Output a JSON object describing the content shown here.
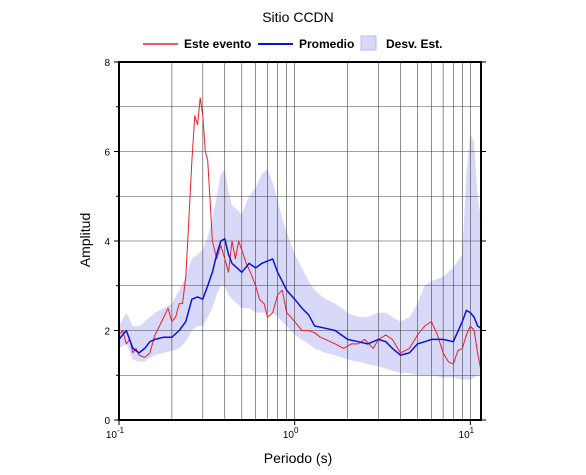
{
  "chart_data": {
    "type": "line",
    "title": "Sitio CCDN",
    "xlabel": "Periodo (s)",
    "ylabel": "Amplitud",
    "x_scale": "log",
    "xlim": [
      0.1,
      11.5
    ],
    "ylim": [
      0,
      8
    ],
    "x_ticks": [
      {
        "value": 0.1,
        "base": "10",
        "exp": "-1"
      },
      {
        "value": 1,
        "base": "10",
        "exp": "0"
      },
      {
        "value": 10,
        "base": "10",
        "exp": "1"
      }
    ],
    "y_ticks": [
      0,
      2,
      4,
      6,
      8
    ],
    "grid": true,
    "legend_position": "top",
    "series": [
      {
        "name": "Este evento",
        "color": "#e8202a",
        "x": [
          0.1,
          0.105,
          0.11,
          0.115,
          0.12,
          0.125,
          0.13,
          0.14,
          0.15,
          0.16,
          0.17,
          0.18,
          0.19,
          0.2,
          0.21,
          0.22,
          0.23,
          0.24,
          0.25,
          0.26,
          0.27,
          0.28,
          0.29,
          0.3,
          0.31,
          0.32,
          0.33,
          0.34,
          0.36,
          0.38,
          0.4,
          0.42,
          0.44,
          0.46,
          0.48,
          0.5,
          0.53,
          0.56,
          0.6,
          0.63,
          0.67,
          0.7,
          0.75,
          0.8,
          0.85,
          0.9,
          0.95,
          1.0,
          1.1,
          1.2,
          1.3,
          1.4,
          1.5,
          1.7,
          1.9,
          2.1,
          2.3,
          2.5,
          2.8,
          3.0,
          3.3,
          3.6,
          4.0,
          4.5,
          5.0,
          5.5,
          6.0,
          6.5,
          7.0,
          7.5,
          8.0,
          8.5,
          9.0,
          9.5,
          10.0,
          10.5,
          11.0,
          11.5
        ],
        "values": [
          1.9,
          2.0,
          1.7,
          1.8,
          1.5,
          1.6,
          1.45,
          1.4,
          1.5,
          1.9,
          2.1,
          2.3,
          2.5,
          2.2,
          2.3,
          2.6,
          2.6,
          3.2,
          4.5,
          5.8,
          6.8,
          6.6,
          7.2,
          6.8,
          6.0,
          5.8,
          4.9,
          4.0,
          3.6,
          3.9,
          3.6,
          3.3,
          4.0,
          3.6,
          4.0,
          3.8,
          3.5,
          3.3,
          3.0,
          2.7,
          2.6,
          2.3,
          2.4,
          2.8,
          2.9,
          2.4,
          2.3,
          2.2,
          2.0,
          2.0,
          1.95,
          1.85,
          1.8,
          1.7,
          1.6,
          1.7,
          1.7,
          1.8,
          1.6,
          1.8,
          1.9,
          1.8,
          1.5,
          1.6,
          1.9,
          2.1,
          2.2,
          1.9,
          1.5,
          1.3,
          1.25,
          1.55,
          1.6,
          1.9,
          2.1,
          2.0,
          1.5,
          1.1
        ]
      },
      {
        "name": "Promedio",
        "color": "#0a14d8",
        "x": [
          0.1,
          0.11,
          0.12,
          0.13,
          0.14,
          0.15,
          0.16,
          0.18,
          0.2,
          0.22,
          0.24,
          0.26,
          0.28,
          0.3,
          0.32,
          0.34,
          0.36,
          0.38,
          0.4,
          0.42,
          0.44,
          0.47,
          0.5,
          0.55,
          0.6,
          0.65,
          0.7,
          0.75,
          0.8,
          0.85,
          0.9,
          1.0,
          1.1,
          1.2,
          1.3,
          1.5,
          1.7,
          2.0,
          2.3,
          2.6,
          3.0,
          3.3,
          3.6,
          4.0,
          4.5,
          5.0,
          5.5,
          6.0,
          7.0,
          8.0,
          9.0,
          9.5,
          10.0,
          10.5,
          11.0,
          11.5
        ],
        "values": [
          1.8,
          2.0,
          1.6,
          1.5,
          1.6,
          1.75,
          1.8,
          1.85,
          1.85,
          2.0,
          2.2,
          2.7,
          2.75,
          2.7,
          3.0,
          3.3,
          3.7,
          4.0,
          4.05,
          3.7,
          3.5,
          3.4,
          3.3,
          3.5,
          3.4,
          3.5,
          3.55,
          3.6,
          3.3,
          3.1,
          2.9,
          2.7,
          2.5,
          2.35,
          2.1,
          2.05,
          2.0,
          1.8,
          1.75,
          1.7,
          1.8,
          1.75,
          1.6,
          1.45,
          1.5,
          1.7,
          1.75,
          1.8,
          1.8,
          1.75,
          2.2,
          2.45,
          2.4,
          2.3,
          2.1,
          2.05
        ]
      }
    ],
    "band": {
      "name": "Desv. Est.",
      "color": "#d8d8f8",
      "x": [
        0.1,
        0.11,
        0.12,
        0.13,
        0.14,
        0.15,
        0.16,
        0.18,
        0.2,
        0.22,
        0.24,
        0.26,
        0.28,
        0.3,
        0.32,
        0.34,
        0.36,
        0.38,
        0.4,
        0.42,
        0.44,
        0.47,
        0.5,
        0.55,
        0.6,
        0.65,
        0.7,
        0.75,
        0.8,
        0.85,
        0.9,
        1.0,
        1.1,
        1.2,
        1.3,
        1.5,
        1.7,
        2.0,
        2.3,
        2.6,
        3.0,
        3.3,
        3.6,
        4.0,
        4.5,
        5.0,
        5.5,
        6.0,
        7.0,
        8.0,
        9.0,
        9.5,
        10.0,
        10.5,
        11.0,
        11.5
      ],
      "upper": [
        2.1,
        2.4,
        2.1,
        2.1,
        2.2,
        2.3,
        2.4,
        2.5,
        2.6,
        2.9,
        3.2,
        3.6,
        3.7,
        3.8,
        4.1,
        4.5,
        5.0,
        5.5,
        5.6,
        5.1,
        4.8,
        4.7,
        4.6,
        5.0,
        5.2,
        5.5,
        5.6,
        5.3,
        4.9,
        4.5,
        4.2,
        3.7,
        3.4,
        3.1,
        2.9,
        2.7,
        2.6,
        2.4,
        2.3,
        2.3,
        2.4,
        2.4,
        2.3,
        2.2,
        2.3,
        2.6,
        3.0,
        3.1,
        3.2,
        3.4,
        3.7,
        5.5,
        6.4,
        6.2,
        5.0,
        4.5
      ],
      "lower": [
        1.6,
        1.7,
        1.35,
        1.3,
        1.3,
        1.4,
        1.45,
        1.5,
        1.55,
        1.6,
        1.75,
        2.0,
        2.1,
        2.1,
        2.3,
        2.5,
        2.8,
        3.0,
        3.0,
        2.8,
        2.7,
        2.6,
        2.5,
        2.5,
        2.4,
        2.4,
        2.4,
        2.4,
        2.3,
        2.2,
        2.1,
        1.9,
        1.8,
        1.7,
        1.6,
        1.5,
        1.45,
        1.35,
        1.3,
        1.25,
        1.2,
        1.15,
        1.1,
        1.05,
        1.05,
        1.0,
        1.0,
        1.0,
        0.95,
        0.95,
        0.9,
        0.9,
        0.9,
        0.95,
        1.0,
        1.0
      ]
    }
  }
}
